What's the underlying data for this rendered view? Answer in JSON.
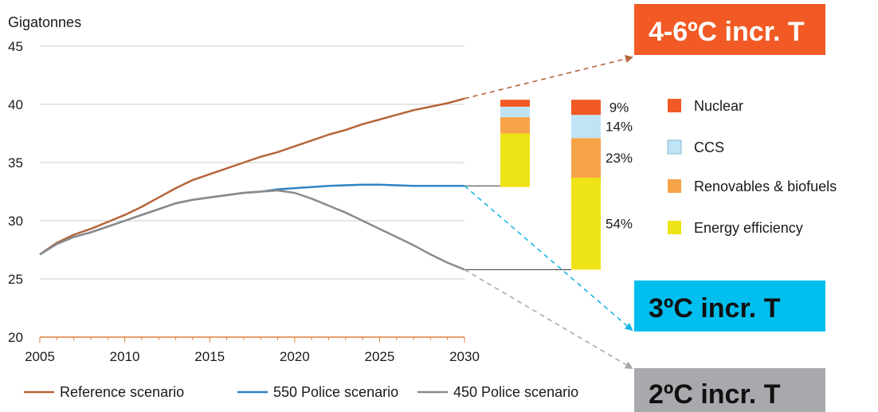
{
  "chart_data": {
    "type": "line",
    "ylabel": "Gigatonnes",
    "ylim": [
      20,
      45
    ],
    "yticks": [
      20,
      25,
      30,
      35,
      40,
      45
    ],
    "xlim": [
      2005,
      2030
    ],
    "xticks": [
      2005,
      2010,
      2015,
      2020,
      2025,
      2030
    ],
    "grid": "horizontal",
    "legend_position": "bottom",
    "series": [
      {
        "name": "Reference scenario",
        "color": "#b5653a",
        "points": [
          [
            2005,
            27.1
          ],
          [
            2006,
            28.1
          ],
          [
            2007,
            28.8
          ],
          [
            2008,
            29.3
          ],
          [
            2009,
            29.9
          ],
          [
            2010,
            30.5
          ],
          [
            2011,
            31.2
          ],
          [
            2012,
            32.0
          ],
          [
            2013,
            32.8
          ],
          [
            2014,
            33.5
          ],
          [
            2015,
            34.0
          ],
          [
            2016,
            34.5
          ],
          [
            2017,
            35.0
          ],
          [
            2018,
            35.5
          ],
          [
            2019,
            35.9
          ],
          [
            2020,
            36.4
          ],
          [
            2021,
            36.9
          ],
          [
            2022,
            37.4
          ],
          [
            2023,
            37.8
          ],
          [
            2024,
            38.3
          ],
          [
            2025,
            38.7
          ],
          [
            2026,
            39.1
          ],
          [
            2027,
            39.5
          ],
          [
            2028,
            39.8
          ],
          [
            2029,
            40.1
          ],
          [
            2030,
            40.5
          ]
        ]
      },
      {
        "name": "550 Police scenario",
        "color": "#2f84c4",
        "points": [
          [
            2005,
            27.1
          ],
          [
            2006,
            28.0
          ],
          [
            2007,
            28.6
          ],
          [
            2008,
            29.0
          ],
          [
            2009,
            29.5
          ],
          [
            2010,
            30.0
          ],
          [
            2011,
            30.5
          ],
          [
            2012,
            31.0
          ],
          [
            2013,
            31.5
          ],
          [
            2014,
            31.8
          ],
          [
            2015,
            32.0
          ],
          [
            2016,
            32.2
          ],
          [
            2017,
            32.4
          ],
          [
            2018,
            32.5
          ],
          [
            2019,
            32.7
          ],
          [
            2020,
            32.8
          ],
          [
            2021,
            32.9
          ],
          [
            2022,
            33.0
          ],
          [
            2023,
            33.05
          ],
          [
            2024,
            33.1
          ],
          [
            2025,
            33.1
          ],
          [
            2026,
            33.05
          ],
          [
            2027,
            33.0
          ],
          [
            2028,
            33.0
          ],
          [
            2029,
            33.0
          ],
          [
            2030,
            33.0
          ]
        ]
      },
      {
        "name": "450 Police scenario",
        "color": "#8a8a8a",
        "points": [
          [
            2005,
            27.1
          ],
          [
            2006,
            28.0
          ],
          [
            2007,
            28.6
          ],
          [
            2008,
            29.0
          ],
          [
            2009,
            29.5
          ],
          [
            2010,
            30.0
          ],
          [
            2011,
            30.5
          ],
          [
            2012,
            31.0
          ],
          [
            2013,
            31.5
          ],
          [
            2014,
            31.8
          ],
          [
            2015,
            32.0
          ],
          [
            2016,
            32.2
          ],
          [
            2017,
            32.4
          ],
          [
            2018,
            32.5
          ],
          [
            2019,
            32.6
          ],
          [
            2020,
            32.4
          ],
          [
            2021,
            31.9
          ],
          [
            2022,
            31.3
          ],
          [
            2023,
            30.7
          ],
          [
            2024,
            30.0
          ],
          [
            2025,
            29.3
          ],
          [
            2026,
            28.6
          ],
          [
            2027,
            27.9
          ],
          [
            2028,
            27.1
          ],
          [
            2029,
            26.4
          ],
          [
            2030,
            25.8
          ]
        ]
      }
    ],
    "stacked_bars": [
      {
        "name": "small",
        "segments": [
          {
            "category": "Energy efficiency",
            "value": 4.6
          },
          {
            "category": "Renovables & biofuels",
            "value": 1.4
          },
          {
            "category": "CCS",
            "value": 0.9
          },
          {
            "category": "Nuclear",
            "value": 0.6
          }
        ]
      },
      {
        "name": "large",
        "segments": [
          {
            "category": "Energy efficiency",
            "value": 7.9,
            "label": "54%"
          },
          {
            "category": "Renovables & biofuels",
            "value": 3.4,
            "label": "23%"
          },
          {
            "category": "CCS",
            "value": 2.0,
            "label": "14%"
          },
          {
            "category": "Nuclear",
            "value": 1.3,
            "label": "9%"
          }
        ]
      }
    ],
    "stack_legend": [
      {
        "label": "Nuclear",
        "color": "#f15a24"
      },
      {
        "label": "CCS",
        "color": "#bfe4f5"
      },
      {
        "label": "Renovables & biofuels",
        "color": "#f7a449"
      },
      {
        "label": "Energy efficiency",
        "color": "#eee316"
      }
    ],
    "outcome_boxes": [
      {
        "label": "4-6ºC incr. T",
        "color": "#f15a24",
        "arrow_color": "#b5653a"
      },
      {
        "label": "3ºC incr. T",
        "color": "#00bfef",
        "arrow_color": "#1ab7e6"
      },
      {
        "label": "2ºC incr. T",
        "color": "#a7a9ac",
        "arrow_color": "#a7a9ac"
      }
    ]
  }
}
